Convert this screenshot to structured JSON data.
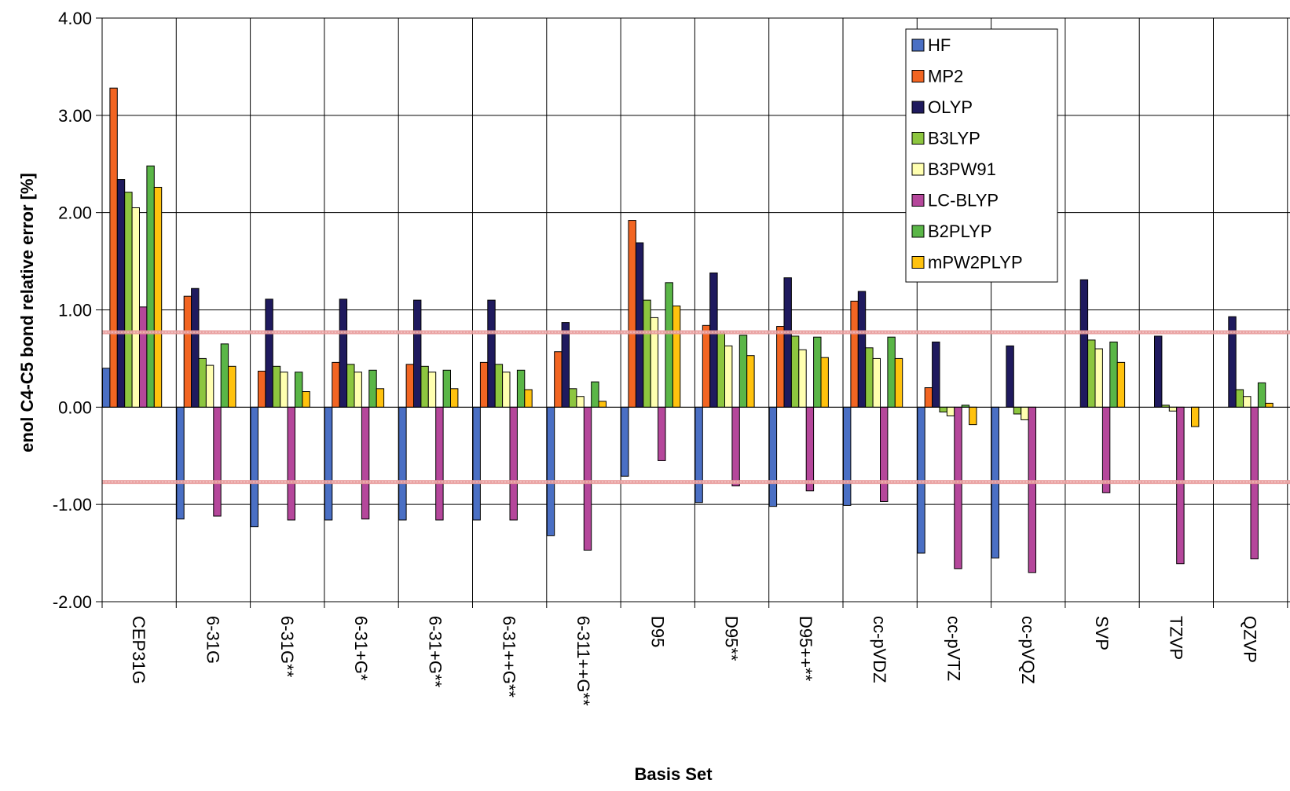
{
  "chart_data": {
    "type": "bar",
    "title": "",
    "xlabel": "Basis Set",
    "ylabel": "enol C4-C5 bond relative error [%]",
    "ylim": [
      -2.0,
      4.0
    ],
    "yticks": [
      -2.0,
      -1.0,
      0.0,
      1.0,
      2.0,
      3.0,
      4.0
    ],
    "ytick_labels": [
      "-2.00",
      "-1.00",
      "0.00",
      "1.00",
      "2.00",
      "3.00",
      "4.00"
    ],
    "grid": true,
    "legend_position": "top-right",
    "reference_lines": [
      0.77,
      -0.77
    ],
    "reference_line_color": "#e89a9a",
    "categories": [
      "CEP31G",
      "6-31G",
      "6-31G**",
      "6-31+G*",
      "6-31+G**",
      "6-31++G**",
      "6-311++G**",
      "D95",
      "D95**",
      "D95++**",
      "cc-pVDZ",
      "cc-pVTZ",
      "cc-pVQZ",
      "SVP",
      "TZVP",
      "QZVP"
    ],
    "series": [
      {
        "name": "HF",
        "color": "#4a6fc4",
        "values": [
          0.4,
          -1.15,
          -1.23,
          -1.16,
          -1.16,
          -1.16,
          -1.32,
          -0.71,
          -0.98,
          -1.02,
          -1.01,
          -1.5,
          -1.55,
          null,
          null,
          null
        ]
      },
      {
        "name": "MP2",
        "color": "#f26522",
        "values": [
          3.28,
          1.14,
          0.37,
          0.46,
          0.44,
          0.46,
          0.57,
          1.92,
          0.84,
          0.83,
          1.09,
          0.2,
          null,
          null,
          null,
          null
        ]
      },
      {
        "name": "OLYP",
        "color": "#1f1a5e",
        "values": [
          2.34,
          1.22,
          1.11,
          1.11,
          1.1,
          1.1,
          0.87,
          1.69,
          1.38,
          1.33,
          1.19,
          0.67,
          0.63,
          1.31,
          0.73,
          0.93
        ]
      },
      {
        "name": "B3LYP",
        "color": "#8dc63f",
        "values": [
          2.21,
          0.5,
          0.42,
          0.44,
          0.42,
          0.44,
          0.19,
          1.1,
          0.77,
          0.73,
          0.61,
          -0.05,
          -0.07,
          0.69,
          0.02,
          0.18
        ]
      },
      {
        "name": "B3PW91",
        "color": "#ffffb0",
        "values": [
          2.05,
          0.43,
          0.36,
          0.36,
          0.36,
          0.36,
          0.11,
          0.92,
          0.63,
          0.59,
          0.5,
          -0.09,
          -0.13,
          0.6,
          -0.04,
          0.11
        ]
      },
      {
        "name": "LC-BLYP",
        "color": "#b5479b",
        "values": [
          1.03,
          -1.12,
          -1.16,
          -1.15,
          -1.16,
          -1.16,
          -1.47,
          -0.55,
          -0.81,
          -0.86,
          -0.97,
          -1.66,
          -1.7,
          -0.88,
          -1.61,
          -1.56
        ]
      },
      {
        "name": "B2PLYP",
        "color": "#5ab647",
        "values": [
          2.48,
          0.65,
          0.36,
          0.38,
          0.38,
          0.38,
          0.26,
          1.28,
          0.74,
          0.72,
          0.72,
          0.02,
          null,
          0.67,
          null,
          0.25
        ]
      },
      {
        "name": "mPW2PLYP",
        "color": "#ffc20e",
        "values": [
          2.26,
          0.42,
          0.16,
          0.19,
          0.19,
          0.18,
          0.06,
          1.04,
          0.53,
          0.51,
          0.5,
          -0.18,
          null,
          0.46,
          -0.2,
          0.04
        ]
      }
    ]
  }
}
